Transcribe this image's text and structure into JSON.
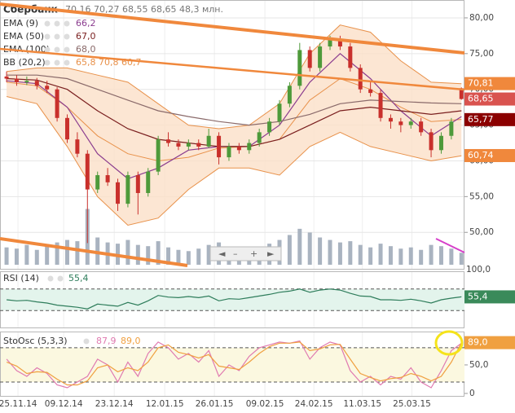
{
  "chart_data": {
    "type": "candlestick",
    "title": "Сбербанк",
    "header_values": "70,16 70,27 68,55 68,65 48,3 млн.",
    "up_color": "#4e9a3a",
    "down_color": "#c9302c",
    "xlim": [
      -0.65,
      45.3
    ],
    "xticks": [
      {
        "value": 1.13,
        "label": "25.11.14"
      },
      {
        "value": 5.65,
        "label": "09.12.14"
      },
      {
        "value": 10.65,
        "label": "23.12.14"
      },
      {
        "value": 15.65,
        "label": "12.01.15"
      },
      {
        "value": 20.56,
        "label": "26.01.15"
      },
      {
        "value": 25.56,
        "label": "09.02.15"
      },
      {
        "value": 30.4,
        "label": "24.02.15"
      },
      {
        "value": 35.2,
        "label": "11.03.15"
      },
      {
        "value": 40.1,
        "label": "25.03.15"
      }
    ],
    "ylim": [
      44.9,
      82.5
    ],
    "yticks": [
      {
        "value": 80,
        "label": "80,00"
      },
      {
        "value": 75,
        "label": "75,00"
      },
      {
        "value": 70,
        "label": "70,00"
      },
      {
        "value": 65,
        "label": "65,00"
      },
      {
        "value": 60,
        "label": "60,00"
      },
      {
        "value": 55,
        "label": "55,00"
      },
      {
        "value": 50,
        "label": "50,00"
      }
    ],
    "grid": true,
    "candles": [
      [
        71.8,
        72.5,
        71,
        71.5
      ],
      [
        71.5,
        72,
        70.5,
        71.0
      ],
      [
        71,
        71.8,
        70.6,
        71.2
      ],
      [
        71.2,
        71.6,
        70,
        70.5
      ],
      [
        70.5,
        71.2,
        69.5,
        70.0
      ],
      [
        70,
        70.3,
        65.5,
        66
      ],
      [
        66,
        66.5,
        62.5,
        63
      ],
      [
        63,
        64,
        60.5,
        61
      ],
      [
        61,
        61.5,
        48.5,
        56
      ],
      [
        56,
        58.5,
        55.5,
        58
      ],
      [
        58,
        59,
        56.5,
        57
      ],
      [
        57,
        57.5,
        53,
        54
      ],
      [
        54,
        58.5,
        53.5,
        58
      ],
      [
        58,
        58.5,
        52.5,
        55.5
      ],
      [
        55.5,
        59,
        55,
        58.5
      ],
      [
        58.5,
        63.5,
        58,
        63
      ],
      [
        63,
        64,
        62,
        62.5
      ],
      [
        62.5,
        63,
        61.5,
        62
      ],
      [
        62,
        63,
        61.5,
        62.5
      ],
      [
        62.5,
        63,
        61.5,
        62
      ],
      [
        62,
        64.5,
        61.8,
        63.5
      ],
      [
        63.5,
        64,
        59.5,
        60.5
      ],
      [
        60.5,
        62.5,
        60,
        62
      ],
      [
        62,
        62.5,
        61,
        61.5
      ],
      [
        61.5,
        63,
        61,
        62.5
      ],
      [
        62.5,
        64.5,
        62,
        64
      ],
      [
        64,
        66,
        63.5,
        65.5
      ],
      [
        65.5,
        68.5,
        65,
        68
      ],
      [
        68,
        71,
        67.5,
        70.5
      ],
      [
        70.5,
        76.5,
        70,
        75.5
      ],
      [
        75.5,
        76,
        72.5,
        73
      ],
      [
        73,
        76.5,
        72.5,
        76
      ],
      [
        76,
        77.5,
        75.5,
        77
      ],
      [
        77,
        77.5,
        75.5,
        76
      ],
      [
        76,
        76.5,
        72.5,
        73
      ],
      [
        73,
        73.5,
        69.5,
        70
      ],
      [
        70,
        71,
        69,
        69.5
      ],
      [
        69.5,
        70,
        65.5,
        66
      ],
      [
        66,
        66.5,
        64.5,
        65.5
      ],
      [
        65.5,
        66,
        64,
        65
      ],
      [
        65,
        66,
        64.5,
        65.5
      ],
      [
        65.5,
        66,
        63.5,
        64
      ],
      [
        64,
        64.5,
        60.5,
        61.5
      ],
      [
        61.5,
        64,
        61,
        63.5
      ],
      [
        63.5,
        66,
        63,
        65.5
      ],
      [
        70.16,
        70.27,
        68.55,
        68.65
      ]
    ],
    "volume": [
      70,
      65,
      80,
      60,
      75,
      90,
      100,
      95,
      225,
      110,
      90,
      85,
      100,
      80,
      75,
      95,
      70,
      60,
      55,
      65,
      80,
      90,
      60,
      55,
      60,
      70,
      85,
      100,
      120,
      145,
      130,
      110,
      100,
      90,
      95,
      80,
      70,
      85,
      75,
      65,
      70,
      60,
      80,
      75,
      65,
      48.3
    ],
    "volume_ylim": [
      0,
      230
    ],
    "volume_color": "#a9b3c0",
    "volume_label": "100,0",
    "overlays": {
      "x": [
        0,
        3,
        6,
        9,
        12,
        15,
        18,
        21,
        24,
        27,
        30,
        33,
        36,
        39,
        42,
        45
      ],
      "ema": [
        {
          "name": "EMA (9)",
          "value_label": "66,2",
          "color": "#8b3d8f",
          "values": [
            71.2,
            70.8,
            67.5,
            61,
            57.5,
            59,
            61.5,
            62,
            62,
            65,
            71,
            75,
            71.5,
            67,
            63.5,
            66.2
          ]
        },
        {
          "name": "EMA (50)",
          "value_label": "67,0",
          "color": "#7a1f1f",
          "values": [
            71.5,
            71.3,
            70,
            67,
            64.5,
            63,
            62.5,
            62,
            62,
            63,
            65,
            67,
            67.5,
            67,
            66.5,
            67.0
          ]
        },
        {
          "name": "EMA (100)",
          "value_label": "68,0",
          "color": "#8a6a6a",
          "values": [
            72,
            72,
            71.5,
            70,
            68.5,
            67,
            66.2,
            65.5,
            65,
            65.5,
            66.5,
            68,
            68.5,
            68.3,
            68.1,
            68.0
          ]
        }
      ],
      "bb": {
        "name": "BB (20,2)",
        "value_label": "65,8 70,8 60,7",
        "color": "#e8914a",
        "fill": "#fbe0c8",
        "upper": [
          72.5,
          73,
          73,
          72,
          71,
          68,
          65,
          64.5,
          65,
          68,
          75,
          79,
          78,
          74,
          71,
          70.8
        ],
        "middle": [
          71,
          70.5,
          67.5,
          63.5,
          61,
          60,
          60.5,
          61.8,
          62,
          63,
          68.5,
          71.5,
          70,
          67.5,
          65.5,
          65.8
        ],
        "lower": [
          69,
          68,
          62,
          55,
          51,
          52,
          56,
          59,
          59,
          58,
          62,
          64,
          62,
          61,
          60,
          60.7
        ]
      }
    },
    "price_tags": [
      {
        "value": 70.81,
        "label": "70,81",
        "color": "#f0883c"
      },
      {
        "value": 68.65,
        "label": "68,65",
        "color": "#d9534f"
      },
      {
        "value": 65.77,
        "label": "65,77",
        "color": "#8b0000"
      },
      {
        "value": 60.74,
        "label": "60,74",
        "color": "#f0883c"
      }
    ],
    "rsi": {
      "name": "RSI (14)",
      "value_label": "55,4",
      "color": "#2e7d5b",
      "ylim": [
        0,
        100
      ],
      "levels": [
        70,
        30
      ],
      "values": [
        50,
        48,
        49,
        46,
        44,
        40,
        38,
        36,
        33,
        42,
        40,
        38,
        45,
        40,
        48,
        58,
        55,
        54,
        56,
        54,
        57,
        48,
        52,
        51,
        54,
        57,
        60,
        64,
        66,
        70,
        64,
        68,
        70,
        68,
        62,
        57,
        56,
        50,
        50,
        49,
        51,
        48,
        44,
        50,
        53,
        55.4
      ]
    },
    "stoch": {
      "name": "StoOsc (5,3,3)",
      "ylim": [
        -5.7,
        107
      ],
      "levels": [
        80,
        20
      ],
      "yticks": [
        {
          "value": 50,
          "label": "50,0"
        },
        0
      ],
      "series": [
        {
          "value_label": "87,9",
          "color": "#e07ab0",
          "values": [
            60,
            40,
            30,
            45,
            35,
            15,
            10,
            20,
            30,
            60,
            50,
            20,
            55,
            30,
            70,
            90,
            80,
            60,
            70,
            55,
            75,
            30,
            50,
            40,
            65,
            80,
            85,
            90,
            88,
            92,
            60,
            80,
            90,
            85,
            40,
            20,
            30,
            15,
            30,
            25,
            45,
            20,
            10,
            40,
            75,
            87.9
          ]
        },
        {
          "value_label": "89,0",
          "color": "#f0a040",
          "values": [
            55,
            48,
            35,
            38,
            37,
            25,
            15,
            15,
            22,
            45,
            50,
            38,
            45,
            40,
            55,
            80,
            85,
            72,
            68,
            62,
            68,
            48,
            45,
            42,
            55,
            70,
            82,
            88,
            88,
            90,
            75,
            78,
            85,
            86,
            60,
            35,
            28,
            22,
            26,
            28,
            35,
            30,
            22,
            30,
            55,
            89.0
          ]
        }
      ]
    }
  }
}
